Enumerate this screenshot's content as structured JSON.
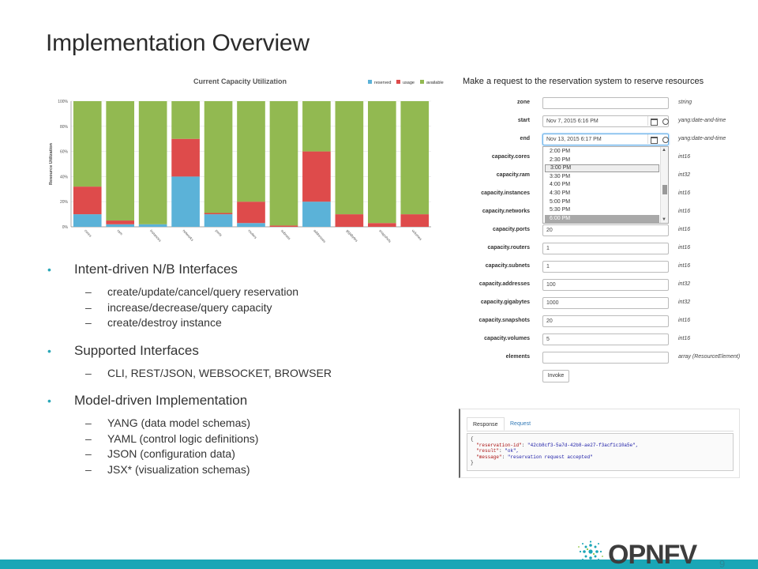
{
  "slide": {
    "title": "Implementation Overview",
    "page_number": "9",
    "logo_text": "OPNFV"
  },
  "colors": {
    "reserved": "#5bb2d8",
    "usage": "#de4b4b",
    "available": "#92b951",
    "accent": "#1aa6b6"
  },
  "chart_data": {
    "type": "bar",
    "stacked": true,
    "title": "Current Capacity Utilization",
    "xlabel": "",
    "ylabel": "Resource Utilization",
    "ylim": [
      0,
      100
    ],
    "yticks": [
      "0%",
      "20%",
      "40%",
      "60%",
      "80%",
      "100%"
    ],
    "legend_position": "top-right",
    "categories": [
      "cores",
      "ram",
      "instances",
      "networks",
      "ports",
      "routers",
      "subnets",
      "addresses",
      "gigabytes",
      "snapshots",
      "volumes"
    ],
    "series": [
      {
        "name": "reserved",
        "color": "#5bb2d8",
        "values": [
          10,
          2,
          2,
          40,
          10,
          3,
          0,
          20,
          0,
          0,
          0
        ]
      },
      {
        "name": "usage",
        "color": "#de4b4b",
        "values": [
          22,
          3,
          0,
          30,
          1,
          17,
          1,
          40,
          10,
          3,
          10
        ]
      },
      {
        "name": "available",
        "color": "#92b951",
        "values": [
          68,
          95,
          98,
          30,
          89,
          80,
          99,
          40,
          90,
          97,
          90
        ]
      }
    ]
  },
  "bullets": [
    {
      "text": "Intent-driven N/B Interfaces",
      "subs": [
        "create/update/cancel/query reservation",
        "increase/decrease/query capacity",
        "create/destroy instance"
      ]
    },
    {
      "text": "Supported Interfaces",
      "subs": [
        "CLI, REST/JSON, WEBSOCKET, BROWSER"
      ]
    },
    {
      "text": "Model-driven Implementation",
      "subs": [
        "YANG (data model schemas)",
        "YAML (control logic definitions)",
        "JSON (configuration data)",
        "JSX* (visualization schemas)"
      ]
    }
  ],
  "form": {
    "title": "Make a request to the reservation system to reserve resources",
    "fields": [
      {
        "label": "zone",
        "value": "",
        "type": "string"
      },
      {
        "label": "start",
        "value": "Nov 7, 2015 6:16 PM",
        "type": "yang:date-and-time"
      },
      {
        "label": "end",
        "value": "Nov 13, 2015 6:17 PM",
        "type": "yang:date-and-time"
      },
      {
        "label": "capacity.cores",
        "value": "",
        "type": "int16"
      },
      {
        "label": "capacity.ram",
        "value": "",
        "type": "int32"
      },
      {
        "label": "capacity.instances",
        "value": "",
        "type": "int16"
      },
      {
        "label": "capacity.networks",
        "value": "",
        "type": "int16"
      },
      {
        "label": "capacity.ports",
        "value": "20",
        "type": "int16"
      },
      {
        "label": "capacity.routers",
        "value": "1",
        "type": "int16"
      },
      {
        "label": "capacity.subnets",
        "value": "1",
        "type": "int16"
      },
      {
        "label": "capacity.addresses",
        "value": "100",
        "type": "int32"
      },
      {
        "label": "capacity.gigabytes",
        "value": "1000",
        "type": "int32"
      },
      {
        "label": "capacity.snapshots",
        "value": "20",
        "type": "int16"
      },
      {
        "label": "capacity.volumes",
        "value": "5",
        "type": "int16"
      },
      {
        "label": "elements",
        "value": "",
        "type": "array (ResourceElement)"
      }
    ],
    "time_options": [
      "2:00 PM",
      "2:30 PM",
      "3:00 PM",
      "3:30 PM",
      "4:00 PM",
      "4:30 PM",
      "5:00 PM",
      "5:30 PM",
      "6:00 PM"
    ],
    "time_hovered": "3:00 PM",
    "time_selected": "6:00 PM",
    "invoke_label": "Invoke"
  },
  "response": {
    "tabs": [
      "Response",
      "Request"
    ],
    "active_tab": "Response",
    "json_lines": [
      {
        "key": "",
        "value": "{"
      },
      {
        "key": "\"reservation-id\"",
        "value": "\"42cb8cf3-5a7d-42b8-ae27-f3acf1c10a5e\","
      },
      {
        "key": "\"result\"",
        "value": "\"ok\","
      },
      {
        "key": "\"message\"",
        "value": "\"reservation request accepted\""
      },
      {
        "key": "",
        "value": "}"
      }
    ]
  }
}
